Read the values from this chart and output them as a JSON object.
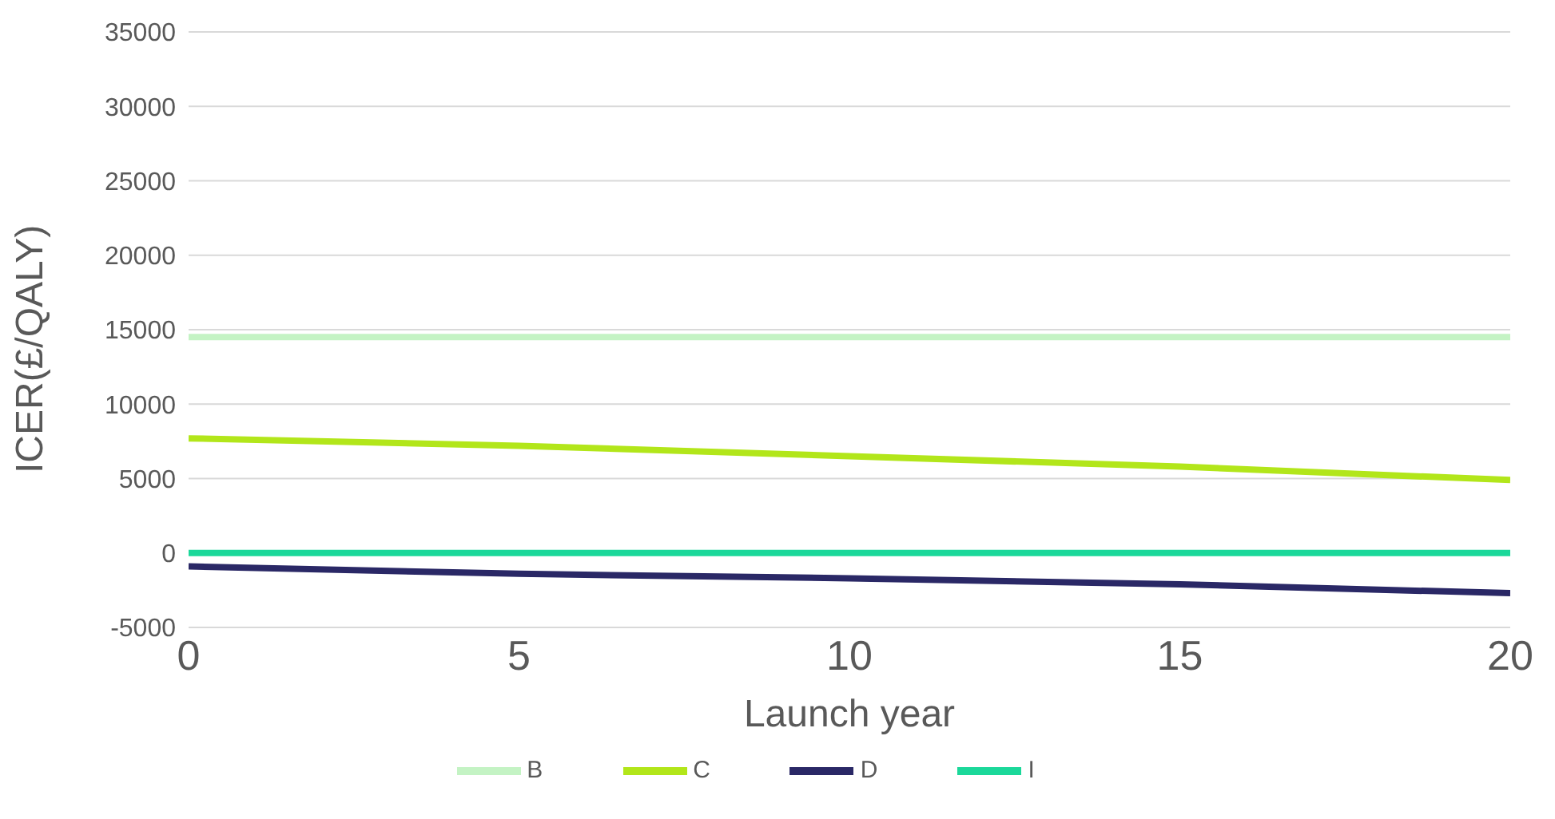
{
  "chart_data": {
    "type": "line",
    "xlabel": "Launch year",
    "ylabel": "ICER(£/QALY)",
    "x": [
      0,
      5,
      10,
      15,
      20
    ],
    "series": [
      {
        "name": "B",
        "color": "#c4f3c4",
        "values": [
          14500,
          14500,
          14500,
          14500,
          14500
        ]
      },
      {
        "name": "C",
        "color": "#b2e61a",
        "values": [
          7700,
          7200,
          6500,
          5800,
          4900
        ]
      },
      {
        "name": "D",
        "color": "#2a2866",
        "values": [
          -900,
          -1400,
          -1700,
          -2100,
          -2700
        ]
      },
      {
        "name": "I",
        "color": "#1bd89a",
        "values": [
          0,
          0,
          0,
          0,
          0
        ]
      }
    ],
    "xlim": [
      0,
      20
    ],
    "xticks": [
      0,
      5,
      10,
      15,
      20
    ],
    "ylim": [
      -5000,
      35000
    ],
    "yticks": [
      -5000,
      0,
      5000,
      10000,
      15000,
      20000,
      25000,
      30000,
      35000
    ],
    "grid": "y",
    "legend": "bottom",
    "marker": "none",
    "line_style": "solid"
  }
}
